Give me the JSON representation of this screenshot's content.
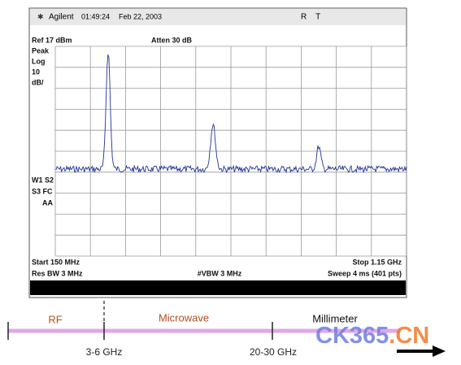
{
  "header": {
    "brand": "Agilent",
    "time": "01:49:24",
    "date": "Feb 22, 2003",
    "status": "R    T"
  },
  "analyzer": {
    "ref": "Ref 17 dBm",
    "atten": "Atten 30 dB",
    "scale": [
      "Peak",
      "Log",
      "10",
      "dB/"
    ],
    "flags": [
      "W1 S2",
      "S3 FC",
      "AA"
    ],
    "start": "Start 150 MHz",
    "stop": "Stop 1.15 GHz",
    "res_bw": "Res BW 3 MHz",
    "vbw": "#VBW 3 MHz",
    "sweep": "Sweep 4 ms (401 pts)"
  },
  "bands": {
    "labels": [
      "RF",
      "Microwave",
      "Millimeter"
    ],
    "boundaries": [
      "3-6 GHz",
      "20-30 GHz"
    ]
  },
  "watermark": {
    "main": "CK365",
    "suffix": ".CN"
  }
}
